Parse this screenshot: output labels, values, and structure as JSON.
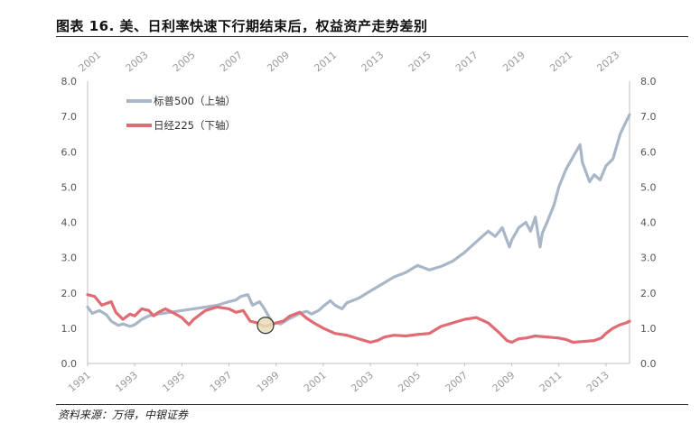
{
  "header": {
    "title": "图表 16. 美、日利率快速下行期结束后，权益资产走势差别"
  },
  "footer": {
    "source": "资料来源：万得，中银证券"
  },
  "colors": {
    "sp500": "#a9b6c8",
    "nikkei": "#e06b72",
    "marker_fill": "#e8ddb8",
    "marker_stroke": "#333333"
  },
  "chart_data": {
    "type": "line",
    "title": "",
    "grid": false,
    "legend_position": "top-left",
    "y_left": {
      "range": [
        0,
        8
      ],
      "ticks": [
        "0.0",
        "1.0",
        "2.0",
        "3.0",
        "4.0",
        "5.0",
        "6.0",
        "7.0",
        "8.0"
      ]
    },
    "y_right": {
      "range": [
        0,
        8
      ],
      "ticks": [
        "0.0",
        "1.0",
        "2.0",
        "3.0",
        "4.0",
        "5.0",
        "6.0",
        "7.0",
        "8.0"
      ]
    },
    "x_top": {
      "label": "上轴",
      "range": [
        2001,
        2024
      ],
      "ticks": [
        "2001",
        "2003",
        "2005",
        "2007",
        "2009",
        "2011",
        "2013",
        "2015",
        "2017",
        "2019",
        "2021",
        "2023"
      ]
    },
    "x_bottom": {
      "label": "下轴",
      "range": [
        1991,
        2014
      ],
      "ticks": [
        "1991",
        "1993",
        "1995",
        "1997",
        "1999",
        "2001",
        "2003",
        "2005",
        "2007",
        "2009",
        "2011",
        "2013"
      ]
    },
    "series": [
      {
        "name": "标普500（上轴）",
        "axis": "top",
        "x": [
          2001.0,
          2001.2,
          2001.5,
          2001.8,
          2002.0,
          2002.3,
          2002.5,
          2002.8,
          2003.0,
          2003.3,
          2003.6,
          2004.0,
          2004.5,
          2005.0,
          2005.5,
          2006.0,
          2006.5,
          2007.0,
          2007.3,
          2007.5,
          2007.8,
          2008.0,
          2008.3,
          2008.5,
          2008.7,
          2008.9,
          2009.0,
          2009.2,
          2009.5,
          2009.8,
          2010.0,
          2010.3,
          2010.5,
          2010.8,
          2011.0,
          2011.3,
          2011.5,
          2011.8,
          2012.0,
          2012.5,
          2013.0,
          2013.5,
          2014.0,
          2014.5,
          2015.0,
          2015.5,
          2016.0,
          2016.5,
          2017.0,
          2017.5,
          2018.0,
          2018.3,
          2018.6,
          2018.9,
          2019.0,
          2019.3,
          2019.6,
          2019.8,
          2020.0,
          2020.2,
          2020.3,
          2020.5,
          2020.8,
          2021.0,
          2021.3,
          2021.6,
          2021.9,
          2022.0,
          2022.3,
          2022.5,
          2022.75,
          2023.0,
          2023.3,
          2023.6,
          2023.85,
          2024.0
        ],
        "values": [
          1.6,
          1.42,
          1.5,
          1.38,
          1.2,
          1.08,
          1.12,
          1.05,
          1.1,
          1.25,
          1.35,
          1.4,
          1.45,
          1.5,
          1.55,
          1.6,
          1.65,
          1.75,
          1.8,
          1.9,
          1.95,
          1.65,
          1.75,
          1.55,
          1.32,
          1.12,
          1.15,
          1.12,
          1.25,
          1.35,
          1.42,
          1.48,
          1.4,
          1.5,
          1.62,
          1.78,
          1.65,
          1.55,
          1.72,
          1.85,
          2.05,
          2.25,
          2.45,
          2.58,
          2.78,
          2.65,
          2.75,
          2.9,
          3.15,
          3.45,
          3.75,
          3.6,
          3.85,
          3.3,
          3.5,
          3.85,
          4.0,
          3.75,
          4.15,
          3.3,
          3.7,
          4.0,
          4.5,
          5.0,
          5.5,
          5.85,
          6.2,
          5.7,
          5.15,
          5.35,
          5.2,
          5.6,
          5.8,
          6.5,
          6.85,
          7.05
        ]
      },
      {
        "name": "日经225（下轴）",
        "axis": "bottom",
        "x": [
          1991.0,
          1991.3,
          1991.6,
          1992.0,
          1992.2,
          1992.5,
          1992.8,
          1993.0,
          1993.3,
          1993.6,
          1993.8,
          1994.0,
          1994.3,
          1994.6,
          1995.0,
          1995.3,
          1995.5,
          1995.8,
          1996.0,
          1996.5,
          1997.0,
          1997.3,
          1997.6,
          1997.9,
          1998.2,
          1998.5,
          1998.8,
          1999.0,
          1999.3,
          1999.6,
          2000.0,
          2000.3,
          2000.6,
          2001.0,
          2001.5,
          2002.0,
          2002.5,
          2003.0,
          2003.3,
          2003.6,
          2004.0,
          2004.5,
          2005.0,
          2005.5,
          2006.0,
          2006.5,
          2007.0,
          2007.5,
          2008.0,
          2008.5,
          2008.8,
          2009.0,
          2009.3,
          2009.6,
          2010.0,
          2010.5,
          2011.0,
          2011.3,
          2011.6,
          2012.0,
          2012.5,
          2012.8,
          2013.0,
          2013.3,
          2013.6,
          2013.85,
          2014.0
        ],
        "values": [
          1.95,
          1.9,
          1.65,
          1.75,
          1.45,
          1.25,
          1.4,
          1.35,
          1.55,
          1.5,
          1.35,
          1.45,
          1.55,
          1.45,
          1.3,
          1.1,
          1.25,
          1.4,
          1.5,
          1.6,
          1.55,
          1.45,
          1.5,
          1.2,
          1.15,
          1.05,
          1.1,
          1.15,
          1.2,
          1.35,
          1.45,
          1.28,
          1.15,
          1.0,
          0.85,
          0.8,
          0.7,
          0.6,
          0.65,
          0.75,
          0.8,
          0.78,
          0.82,
          0.85,
          1.05,
          1.15,
          1.25,
          1.3,
          1.15,
          0.85,
          0.65,
          0.6,
          0.7,
          0.72,
          0.78,
          0.75,
          0.72,
          0.68,
          0.6,
          0.62,
          0.65,
          0.72,
          0.85,
          1.0,
          1.1,
          1.15,
          1.2
        ]
      }
    ],
    "annotations": [
      {
        "shape": "circle",
        "axis": "bottom",
        "x": 1998.55,
        "y": 1.08
      }
    ]
  }
}
